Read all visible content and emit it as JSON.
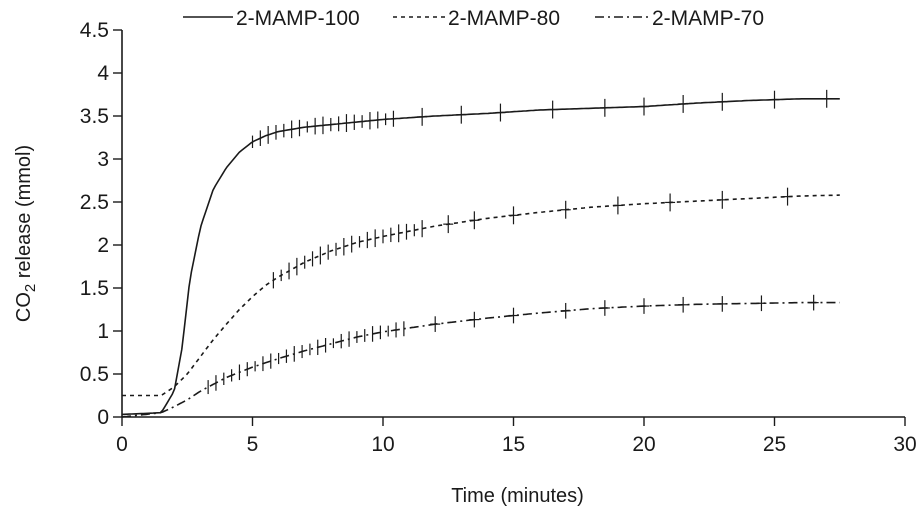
{
  "chart_data": {
    "type": "line",
    "xlabel": "Time (minutes)",
    "ylabel_main": "CO",
    "ylabel_sub": "2",
    "ylabel_rest": " release (mmol)",
    "xlim": [
      0,
      30
    ],
    "ylim": [
      0,
      4.5
    ],
    "xticks": [
      "0",
      "5",
      "10",
      "15",
      "20",
      "25",
      "30"
    ],
    "yticks": [
      "0",
      "0.5",
      "1",
      "1.5",
      "2",
      "2.5",
      "3",
      "3.5",
      "4",
      "4.5"
    ],
    "grid": false,
    "legend_position": "top",
    "series": [
      {
        "name": "2-MAMP-100",
        "dash": "solid",
        "x": [
          0,
          1.5,
          2.0,
          2.3,
          2.6,
          3.0,
          3.5,
          4.0,
          4.5,
          5.0,
          5.5,
          6.0,
          7.0,
          8.0,
          9.0,
          10.0,
          12.0,
          14.0,
          16.0,
          18.0,
          20.0,
          22.0,
          24.0,
          26.0,
          27.5
        ],
        "y": [
          0.03,
          0.05,
          0.3,
          0.8,
          1.6,
          2.2,
          2.65,
          2.9,
          3.08,
          3.2,
          3.27,
          3.32,
          3.37,
          3.4,
          3.43,
          3.46,
          3.5,
          3.53,
          3.57,
          3.59,
          3.61,
          3.65,
          3.68,
          3.7,
          3.7
        ],
        "err_step": 0.3,
        "err_start": 5.0,
        "err_end": 10.5,
        "err_sparse": [
          11.5,
          13.0,
          14.5,
          16.5,
          18.5,
          20.0,
          21.5,
          23.0,
          25.0,
          27.0
        ],
        "err_half": 0.08
      },
      {
        "name": "2-MAMP-80",
        "dash": "4,4",
        "x": [
          0,
          1.5,
          2.0,
          2.5,
          3.0,
          3.5,
          4.0,
          4.5,
          5.0,
          5.5,
          6.0,
          7.0,
          8.0,
          9.0,
          10.0,
          12.0,
          14.0,
          16.0,
          18.0,
          20.0,
          22.0,
          24.0,
          26.0,
          27.5
        ],
        "y": [
          0.25,
          0.25,
          0.35,
          0.5,
          0.7,
          0.9,
          1.08,
          1.25,
          1.4,
          1.53,
          1.63,
          1.8,
          1.93,
          2.03,
          2.1,
          2.22,
          2.31,
          2.38,
          2.44,
          2.48,
          2.51,
          2.54,
          2.57,
          2.58
        ],
        "err_step": 0.3,
        "err_start": 5.8,
        "err_end": 11.5,
        "err_sparse": [
          12.5,
          13.5,
          15.0,
          17.0,
          19.0,
          21.0,
          23.0,
          25.5
        ],
        "err_half": 0.08
      },
      {
        "name": "2-MAMP-70",
        "dash": "9,4,2,4",
        "x": [
          0,
          1.5,
          2.0,
          2.5,
          3.0,
          3.5,
          4.0,
          4.5,
          5.0,
          6.0,
          7.0,
          8.0,
          9.0,
          10.0,
          12.0,
          14.0,
          16.0,
          18.0,
          20.0,
          22.0,
          24.0,
          26.0,
          27.5
        ],
        "y": [
          0.0,
          0.05,
          0.12,
          0.2,
          0.3,
          0.38,
          0.46,
          0.52,
          0.58,
          0.68,
          0.77,
          0.85,
          0.93,
          0.99,
          1.08,
          1.15,
          1.21,
          1.26,
          1.29,
          1.31,
          1.32,
          1.33,
          1.33
        ],
        "err_step": 0.3,
        "err_start": 3.3,
        "err_end": 11.0,
        "err_sparse": [
          12.0,
          13.5,
          15.0,
          17.0,
          18.5,
          20.0,
          21.5,
          23.0,
          24.5,
          26.5
        ],
        "err_half": 0.07
      }
    ]
  }
}
